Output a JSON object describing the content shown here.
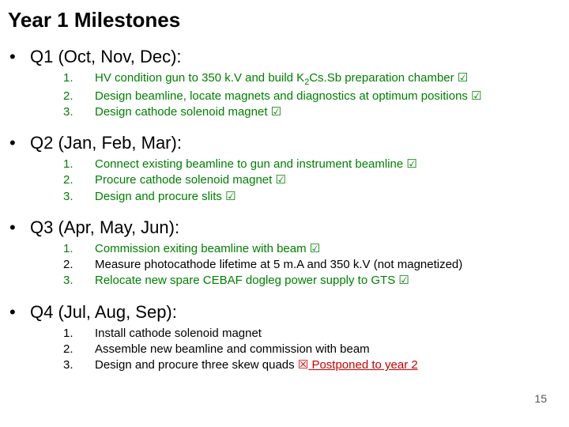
{
  "title": "Year 1 Milestones",
  "colors": {
    "black": "#000000",
    "green": "#008000",
    "red": "#cc0000"
  },
  "glyphs": {
    "check": "☑",
    "cross": "☒"
  },
  "pageNumber": "15",
  "quarters": [
    {
      "heading": "Q1 (Oct, Nov, Dec):",
      "color": "black",
      "items": [
        {
          "num": "1.",
          "color": "green",
          "segments": [
            {
              "t": "HV condition gun to 350 k.V and build K"
            },
            {
              "t": "2",
              "sub": true
            },
            {
              "t": "Cs.Sb preparation chamber "
            },
            {
              "t": "☑",
              "kind": "check"
            }
          ]
        },
        {
          "num": "2.",
          "color": "green",
          "segments": [
            {
              "t": "Design beamline, locate magnets and diagnostics at optimum positions "
            },
            {
              "t": "☑",
              "kind": "check"
            }
          ]
        },
        {
          "num": "3.",
          "color": "green",
          "segments": [
            {
              "t": "Design cathode solenoid magnet "
            },
            {
              "t": "☑",
              "kind": "check"
            }
          ]
        }
      ]
    },
    {
      "heading": "Q2 (Jan, Feb, Mar):",
      "color": "black",
      "items": [
        {
          "num": "1.",
          "color": "green",
          "segments": [
            {
              "t": "Connect existing beamline to gun and instrument beamline "
            },
            {
              "t": "☑",
              "kind": "check"
            }
          ]
        },
        {
          "num": "2.",
          "color": "green",
          "segments": [
            {
              "t": "Procure cathode solenoid magnet "
            },
            {
              "t": "☑",
              "kind": "check"
            }
          ]
        },
        {
          "num": "3.",
          "color": "green",
          "segments": [
            {
              "t": "Design and procure slits "
            },
            {
              "t": "☑",
              "kind": "check"
            }
          ]
        }
      ]
    },
    {
      "heading": "Q3 (Apr, May, Jun):",
      "color": "black",
      "items": [
        {
          "num": "1.",
          "color": "green",
          "segments": [
            {
              "t": "Commission exiting beamline with beam "
            },
            {
              "t": "☑",
              "kind": "check"
            }
          ]
        },
        {
          "num": "2.",
          "color": "black",
          "segments": [
            {
              "t": "Measure photocathode lifetime at 5 m.A and 350 k.V (not magnetized)"
            }
          ]
        },
        {
          "num": "3.",
          "color": "green",
          "segments": [
            {
              "t": "Relocate new spare CEBAF dogleg power supply to GTS "
            },
            {
              "t": "☑",
              "kind": "check"
            }
          ]
        }
      ]
    },
    {
      "heading": "Q4 (Jul, Aug, Sep):",
      "color": "black",
      "items": [
        {
          "num": "1.",
          "color": "black",
          "segments": [
            {
              "t": "Install cathode solenoid magnet"
            }
          ]
        },
        {
          "num": "2.",
          "color": "black",
          "segments": [
            {
              "t": "Assemble new beamline and commission with beam"
            }
          ]
        },
        {
          "num": "3.",
          "color": "black",
          "segments": [
            {
              "t": "Design and procure three skew quads "
            },
            {
              "t": "☒",
              "kind": "cross",
              "color": "red"
            },
            {
              "t": " Postponed to year 2",
              "color": "red",
              "underline": true
            }
          ]
        }
      ]
    }
  ]
}
